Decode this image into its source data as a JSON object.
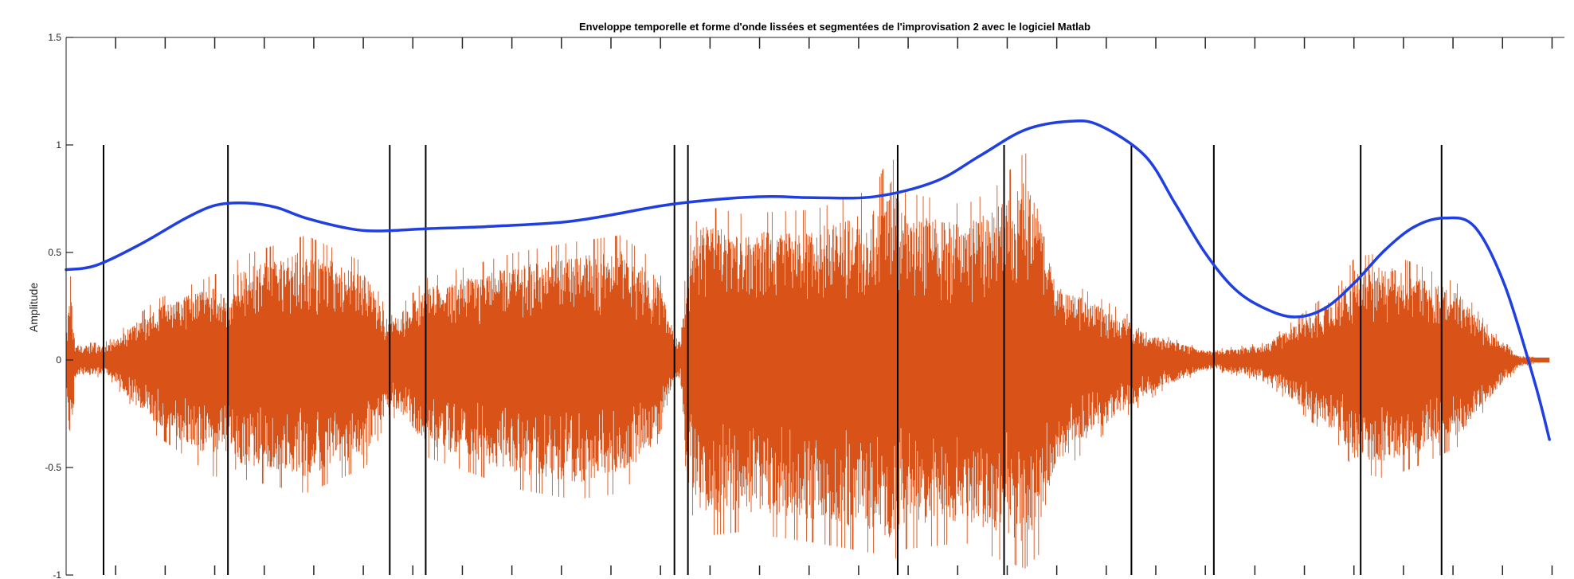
{
  "chart_data": {
    "type": "line",
    "title": "Enveloppe temporelle et forme d'onde lissées et segmentées de l'improvisation 2 avec le logiciel Matlab",
    "xlabel": "",
    "ylabel": "Amplitude",
    "xlim": [
      0,
      1
    ],
    "ylim": [
      -1,
      1.5
    ],
    "yticks": [
      {
        "value": 1.5,
        "label": "1.5"
      },
      {
        "value": 1,
        "label": "1"
      },
      {
        "value": 0.5,
        "label": "0.5"
      },
      {
        "value": 0,
        "label": "0"
      },
      {
        "value": -0.5,
        "label": "-0.5"
      },
      {
        "value": -1,
        "label": "-1"
      }
    ],
    "x_tick_count": 30,
    "grid": false,
    "colors": {
      "envelope": "#1f3fe0",
      "waveform": "#d95319",
      "segments": "#000000",
      "axes": "#222222"
    },
    "segment_boundaries": [
      0.025,
      0.108,
      0.216,
      0.24,
      0.406,
      0.415,
      0.555,
      0.626,
      0.711,
      0.766,
      0.864,
      0.918
    ],
    "series": [
      {
        "id": "envelope",
        "x": [
          0,
          0.02,
          0.05,
          0.08,
          0.1,
          0.12,
          0.14,
          0.16,
          0.19,
          0.21,
          0.24,
          0.28,
          0.33,
          0.36,
          0.4,
          0.44,
          0.47,
          0.5,
          0.54,
          0.58,
          0.61,
          0.64,
          0.67,
          0.69,
          0.72,
          0.74,
          0.76,
          0.78,
          0.8,
          0.82,
          0.84,
          0.86,
          0.88,
          0.9,
          0.92,
          0.94,
          0.96,
          0.98,
          0.99
        ],
        "values": [
          0.42,
          0.44,
          0.54,
          0.66,
          0.72,
          0.73,
          0.71,
          0.66,
          0.61,
          0.6,
          0.61,
          0.62,
          0.64,
          0.67,
          0.72,
          0.75,
          0.76,
          0.755,
          0.76,
          0.83,
          0.95,
          1.07,
          1.11,
          1.09,
          0.95,
          0.73,
          0.5,
          0.33,
          0.24,
          0.2,
          0.24,
          0.36,
          0.51,
          0.62,
          0.66,
          0.62,
          0.35,
          -0.1,
          -0.37
        ]
      },
      {
        "id": "waveform",
        "amplitude_profile": {
          "x": [
            0,
            0.003,
            0.006,
            0.025,
            0.03,
            0.06,
            0.1,
            0.108,
            0.115,
            0.16,
            0.2,
            0.216,
            0.23,
            0.24,
            0.26,
            0.3,
            0.34,
            0.37,
            0.395,
            0.406,
            0.41,
            0.415,
            0.425,
            0.45,
            0.5,
            0.54,
            0.55,
            0.56,
            0.6,
            0.62,
            0.64,
            0.65,
            0.66,
            0.7,
            0.73,
            0.76,
            0.766,
            0.8,
            0.85,
            0.86,
            0.88,
            0.9,
            0.93,
            0.95,
            0.97,
            0.98,
            1.0
          ],
          "top": [
            0.1,
            0.45,
            0.08,
            0.08,
            0.1,
            0.28,
            0.4,
            0.3,
            0.48,
            0.58,
            0.45,
            0.2,
            0.3,
            0.38,
            0.42,
            0.5,
            0.55,
            0.58,
            0.45,
            0.1,
            0.1,
            0.55,
            0.72,
            0.68,
            0.7,
            0.8,
            0.97,
            0.78,
            0.72,
            0.8,
            0.97,
            0.78,
            0.4,
            0.25,
            0.12,
            0.05,
            0.05,
            0.08,
            0.35,
            0.48,
            0.5,
            0.45,
            0.35,
            0.15,
            0.02,
            0.02,
            0.02
          ],
          "bottom": [
            -0.1,
            -0.5,
            -0.08,
            -0.08,
            -0.1,
            -0.35,
            -0.55,
            -0.4,
            -0.55,
            -0.62,
            -0.5,
            -0.25,
            -0.35,
            -0.45,
            -0.5,
            -0.6,
            -0.65,
            -0.62,
            -0.45,
            -0.1,
            -0.1,
            -0.68,
            -0.82,
            -0.8,
            -0.85,
            -0.9,
            -0.95,
            -0.88,
            -0.85,
            -0.92,
            -0.97,
            -0.9,
            -0.55,
            -0.3,
            -0.15,
            -0.05,
            -0.05,
            -0.1,
            -0.4,
            -0.52,
            -0.55,
            -0.5,
            -0.4,
            -0.2,
            -0.03,
            -0.02,
            -0.02
          ]
        }
      }
    ]
  }
}
